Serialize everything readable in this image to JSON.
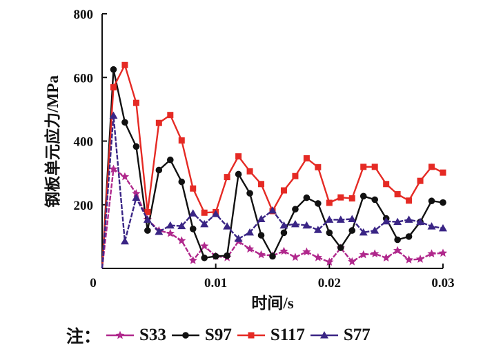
{
  "chart_data": {
    "type": "line",
    "title": "",
    "xlabel": "时间/s",
    "ylabel": "钢板单元应力/MPa",
    "xlim": [
      0,
      0.03
    ],
    "ylim": [
      0,
      800
    ],
    "xticks": [
      0,
      0.01,
      0.02,
      0.03
    ],
    "xtick_labels": [
      "0",
      "0.01",
      "0.02",
      "0.03"
    ],
    "yticks": [
      200,
      400,
      600,
      800
    ],
    "ytick_labels": [
      "200",
      "400",
      "600",
      "800"
    ],
    "grid": false,
    "legend_position": "bottom",
    "legend_prefix": "注：",
    "x": [
      0,
      0.001,
      0.002,
      0.003,
      0.004,
      0.005,
      0.006,
      0.007,
      0.008,
      0.009,
      0.01,
      0.011,
      0.012,
      0.013,
      0.014,
      0.015,
      0.016,
      0.017,
      0.018,
      0.019,
      0.02,
      0.021,
      0.022,
      0.023,
      0.024,
      0.025,
      0.026,
      0.027,
      0.028,
      0.029,
      0.03
    ],
    "series": [
      {
        "name": "S33",
        "color": "#b0288c",
        "marker": "star",
        "values": [
          0,
          312,
          288,
          235,
          154,
          119,
          110,
          87,
          25,
          70,
          38,
          34,
          85,
          61,
          43,
          40,
          54,
          35,
          52,
          34,
          20,
          64,
          21,
          43,
          46,
          33,
          56,
          27,
          29,
          46,
          48
        ]
      },
      {
        "name": "S97",
        "color": "#111111",
        "marker": "circle",
        "values": [
          0,
          625,
          459,
          383,
          119,
          309,
          341,
          272,
          124,
          33,
          38,
          40,
          296,
          236,
          104,
          38,
          112,
          186,
          222,
          204,
          112,
          65,
          119,
          227,
          216,
          157,
          90,
          100,
          146,
          212,
          207
        ]
      },
      {
        "name": "S117",
        "color": "#e52a24",
        "marker": "square",
        "values": [
          0,
          569,
          639,
          520,
          177,
          457,
          482,
          402,
          251,
          175,
          177,
          287,
          352,
          305,
          265,
          180,
          245,
          290,
          346,
          318,
          206,
          223,
          220,
          319,
          319,
          265,
          233,
          213,
          275,
          319,
          301
        ]
      },
      {
        "name": "S77",
        "color": "#3a2585",
        "marker": "triangle",
        "values": [
          0,
          480,
          85,
          222,
          153,
          115,
          135,
          133,
          173,
          139,
          171,
          132,
          93,
          113,
          155,
          182,
          135,
          139,
          135,
          121,
          153,
          153,
          155,
          113,
          119,
          148,
          146,
          153,
          146,
          132,
          126
        ]
      }
    ]
  }
}
